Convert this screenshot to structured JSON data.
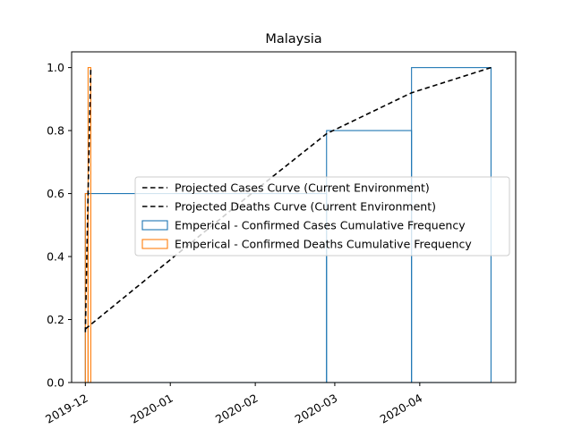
{
  "chart_data": {
    "type": "line",
    "title": "Malaysia",
    "xlabel": "",
    "ylabel": "",
    "xlim": [
      "2019-11-26",
      "2020-05-06"
    ],
    "ylim": [
      0,
      1.05
    ],
    "x_ticks": [
      "2019-12",
      "2020-01",
      "2020-02",
      "2020-03",
      "2020-04"
    ],
    "x_tick_dates": [
      "2019-12-01",
      "2020-01-01",
      "2020-02-01",
      "2020-03-01",
      "2020-04-01"
    ],
    "y_ticks": [
      "0.0",
      "0.2",
      "0.4",
      "0.6",
      "0.8",
      "1.0"
    ],
    "y_tick_values": [
      0.0,
      0.2,
      0.4,
      0.6,
      0.8,
      1.0
    ],
    "grid": false,
    "legend_position": "center-right",
    "series": [
      {
        "name": "Projected Cases Curve (Current Environment)",
        "kind": "dashed-line",
        "color": "#000000",
        "points": [
          {
            "x": "2019-12-01",
            "y": 0.17
          },
          {
            "x": "2020-01-01",
            "y": 0.39
          },
          {
            "x": "2020-02-01",
            "y": 0.61
          },
          {
            "x": "2020-02-27",
            "y": 0.79
          },
          {
            "x": "2020-03-29",
            "y": 0.92
          },
          {
            "x": "2020-04-27",
            "y": 1.0
          }
        ]
      },
      {
        "name": "Projected Deaths Curve (Current Environment)",
        "kind": "dashed-line",
        "color": "#000000",
        "points": [
          {
            "x": "2019-12-01",
            "y": 0.16
          },
          {
            "x": "2019-12-02",
            "y": 0.6
          },
          {
            "x": "2019-12-03",
            "y": 1.0
          }
        ]
      },
      {
        "name": "Emperical - Confirmed Cases Cumulative Frequency",
        "kind": "step-histogram",
        "color": "#1f77b4",
        "bins": [
          {
            "from": "2019-12-01",
            "to": "2020-02-27",
            "y": 0.6
          },
          {
            "from": "2020-02-27",
            "to": "2020-03-29",
            "y": 0.8
          },
          {
            "from": "2020-03-29",
            "to": "2020-04-27",
            "y": 1.0
          }
        ]
      },
      {
        "name": "Emperical - Confirmed Deaths Cumulative Frequency",
        "kind": "step-histogram",
        "color": "#ff7f0e",
        "bins": [
          {
            "from": "2019-12-01",
            "to": "2019-12-02",
            "y": 0.6
          },
          {
            "from": "2019-12-02",
            "to": "2019-12-03",
            "y": 1.0
          }
        ]
      }
    ]
  }
}
